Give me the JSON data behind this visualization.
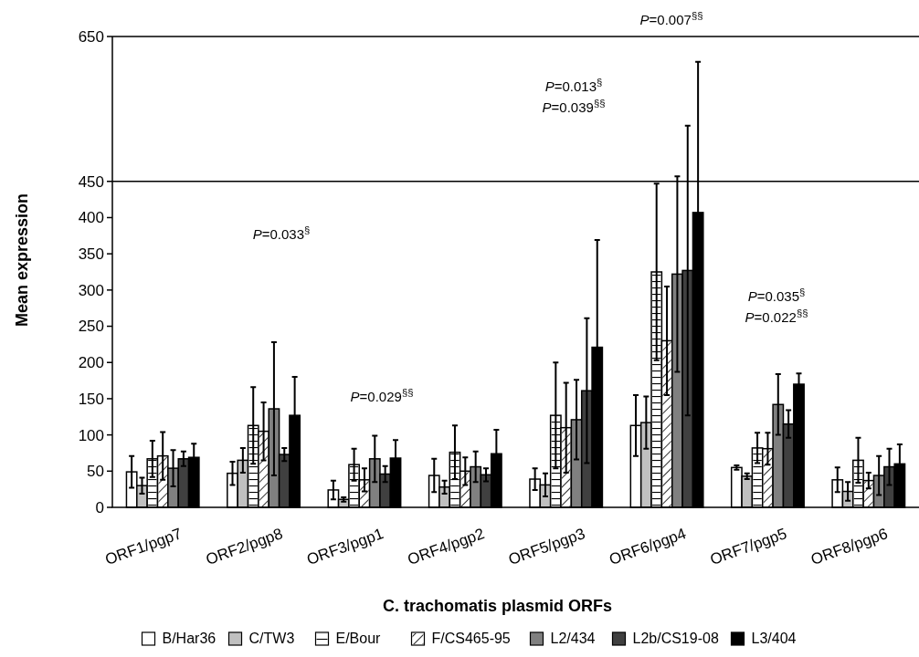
{
  "chart_data": {
    "type": "bar",
    "xlabel": "C. trachomatis plasmid ORFs",
    "ylabel": "Mean expression",
    "categories": [
      "ORF1/pgp7",
      "ORF2/pgp8",
      "ORF3/pgp1",
      "ORF4/pgp2",
      "ORF5/pgp3",
      "ORF6/pgp4",
      "ORF7/pgp5",
      "ORF8/pgp6"
    ],
    "series": [
      {
        "name": "B/Har36",
        "color": "#ffffff",
        "values": [
          49,
          47,
          24,
          44,
          39,
          113,
          55,
          38
        ],
        "errors": [
          22,
          16,
          13,
          23,
          15,
          42,
          3,
          17
        ]
      },
      {
        "name": "C/TW3",
        "color": "#c0c0c0",
        "values": [
          30,
          65,
          11,
          28,
          31,
          117,
          43,
          22
        ],
        "errors": [
          11,
          17,
          3,
          9,
          16,
          36,
          4,
          13
        ]
      },
      {
        "name": "E/Bour",
        "color": "#ffffff",
        "values": [
          67,
          113,
          59,
          76,
          127,
          325,
          82,
          65
        ],
        "errors": [
          25,
          53,
          22,
          37,
          73,
          122,
          21,
          31
        ]
      },
      {
        "name": "F/CS465-95",
        "color": "#ffffff",
        "values": [
          71,
          105,
          38,
          50,
          110,
          230,
          81,
          37
        ],
        "errors": [
          33,
          40,
          16,
          19,
          62,
          75,
          22,
          11
        ]
      },
      {
        "name": "L2/434",
        "color": "#808080",
        "values": [
          54,
          136,
          67,
          56,
          121,
          322,
          142,
          44
        ],
        "errors": [
          25,
          92,
          32,
          21,
          55,
          135,
          42,
          27
        ]
      },
      {
        "name": "L2b/CS19-08",
        "color": "#404040",
        "values": [
          67,
          73,
          46,
          45,
          161,
          327,
          115,
          56
        ],
        "errors": [
          10,
          9,
          11,
          9,
          100,
          200,
          19,
          25
        ]
      },
      {
        "name": "L3/404",
        "color": "#000000",
        "values": [
          69,
          127,
          68,
          74,
          221,
          407,
          170,
          60
        ],
        "errors": [
          19,
          53,
          25,
          33,
          148,
          208,
          15,
          27
        ]
      }
    ],
    "ylim": [
      0,
      650
    ],
    "yticks": [
      0,
      50,
      100,
      150,
      200,
      250,
      300,
      350,
      400,
      450,
      650
    ],
    "legend": "bottom",
    "annotations": [
      "P=0.033$^{§}$",
      "P=0.029$^{§§}$",
      "P=0.013$^{§}$",
      "P=0.039$^{§§}$",
      "P=0.007$^{§§}$",
      "P=0.035$^{§}$",
      "P=0.022$^{§§}$"
    ]
  }
}
